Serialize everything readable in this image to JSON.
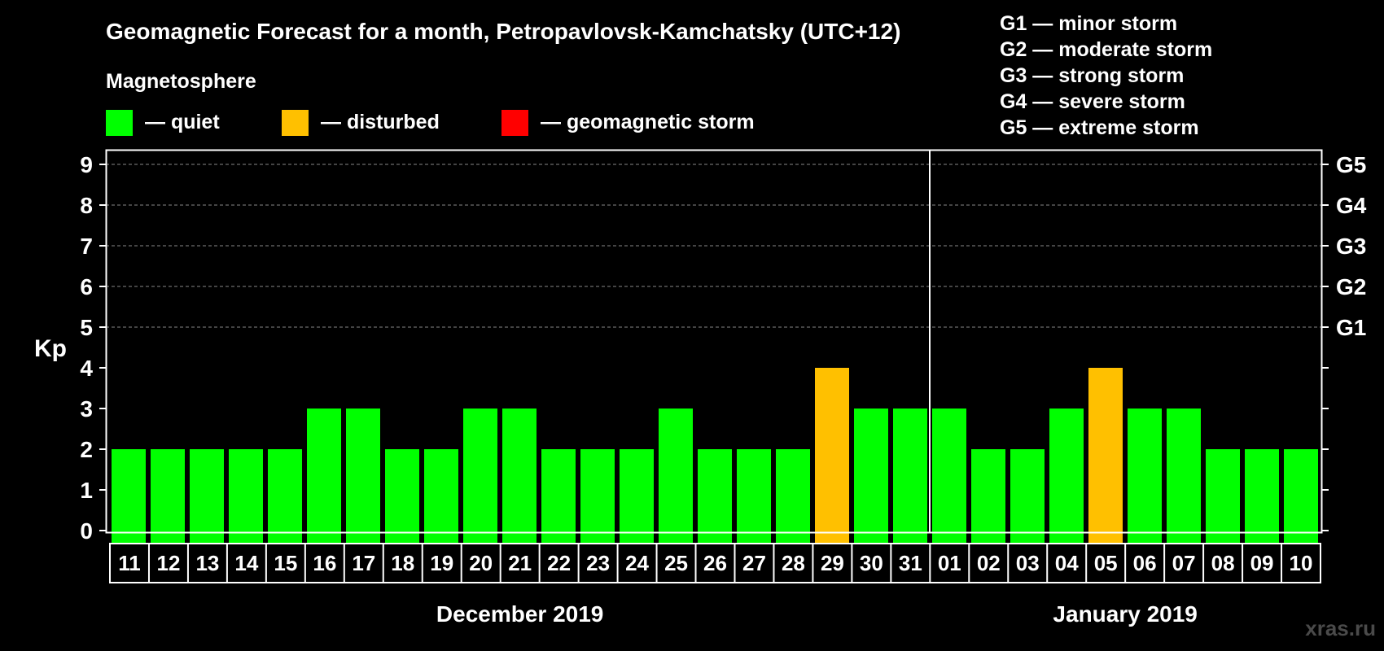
{
  "chart_data": {
    "type": "bar",
    "title": "Geomagnetic Forecast for a month, Petropavlovsk-Kamchatsky (UTC+12)",
    "legend_title": "Magnetosphere",
    "legend": [
      {
        "label": "— quiet",
        "color": "#00ff00"
      },
      {
        "label": "— disturbed",
        "color": "#ffc000"
      },
      {
        "label": "— geomagnetic storm",
        "color": "#ff0000"
      }
    ],
    "storm_levels": [
      "G1 — minor storm",
      "G2 — moderate storm",
      "G3 — strong storm",
      "G4 — severe storm",
      "G5 — extreme storm"
    ],
    "ylabel": "Kp",
    "ylim": [
      0,
      9
    ],
    "yticks": [
      "0",
      "1",
      "2",
      "3",
      "4",
      "5",
      "6",
      "7",
      "8",
      "9"
    ],
    "right_ticks": [
      {
        "y": 5,
        "label": "G1"
      },
      {
        "y": 6,
        "label": "G2"
      },
      {
        "y": 7,
        "label": "G3"
      },
      {
        "y": 8,
        "label": "G4"
      },
      {
        "y": 9,
        "label": "G5"
      }
    ],
    "grid_levels": [
      5,
      6,
      7,
      8,
      9
    ],
    "categories": [
      "11",
      "12",
      "13",
      "14",
      "15",
      "16",
      "17",
      "18",
      "19",
      "20",
      "21",
      "22",
      "23",
      "24",
      "25",
      "26",
      "27",
      "28",
      "29",
      "30",
      "31",
      "01",
      "02",
      "03",
      "04",
      "05",
      "06",
      "07",
      "08",
      "09",
      "10"
    ],
    "values": [
      2,
      2,
      2,
      2,
      2,
      3,
      3,
      2,
      2,
      3,
      3,
      2,
      2,
      2,
      3,
      2,
      2,
      2,
      4,
      3,
      3,
      3,
      2,
      2,
      3,
      4,
      3,
      3,
      2,
      2,
      2
    ],
    "status": [
      "quiet",
      "quiet",
      "quiet",
      "quiet",
      "quiet",
      "quiet",
      "quiet",
      "quiet",
      "quiet",
      "quiet",
      "quiet",
      "quiet",
      "quiet",
      "quiet",
      "quiet",
      "quiet",
      "quiet",
      "quiet",
      "disturbed",
      "quiet",
      "quiet",
      "quiet",
      "quiet",
      "quiet",
      "quiet",
      "disturbed",
      "quiet",
      "quiet",
      "quiet",
      "quiet",
      "quiet"
    ],
    "colors": {
      "quiet": "#00ff00",
      "disturbed": "#ffc000",
      "storm": "#ff0000"
    },
    "month_divider_after": "31",
    "months": [
      {
        "label": "December 2019",
        "from": "11",
        "to": "31"
      },
      {
        "label": "January 2019",
        "from": "01",
        "to": "10"
      }
    ],
    "grid": "dashed horizontal at Kp 5-9"
  },
  "watermark": "xras.ru"
}
